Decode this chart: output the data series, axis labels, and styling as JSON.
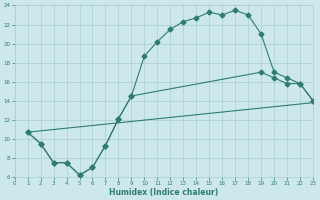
{
  "xlabel": "Humidex (Indice chaleur)",
  "bg_color": "#cde8ec",
  "grid_color": "#aacdd4",
  "line_color": "#2e7d6e",
  "xlim": [
    0,
    23
  ],
  "ylim": [
    6,
    24
  ],
  "xticks": [
    0,
    1,
    2,
    3,
    4,
    5,
    6,
    7,
    8,
    9,
    10,
    11,
    12,
    13,
    14,
    15,
    16,
    17,
    18,
    19,
    20,
    21,
    22,
    23
  ],
  "yticks": [
    6,
    8,
    10,
    12,
    14,
    16,
    18,
    20,
    22,
    24
  ],
  "series1_x": [
    1,
    2,
    3,
    4,
    5,
    6,
    7,
    8,
    9,
    10,
    11,
    12,
    13,
    14,
    15,
    16,
    17,
    18,
    19,
    20,
    21,
    22,
    23
  ],
  "series1_y": [
    10.7,
    9.5,
    7.5,
    7.5,
    6.2,
    7.0,
    9.3,
    12.1,
    14.5,
    18.7,
    20.2,
    21.5,
    22.3,
    22.7,
    23.3,
    23.0,
    23.5,
    23.0,
    21.0,
    17.0,
    16.4,
    15.8,
    14.0
  ],
  "series2_x": [
    1,
    2,
    3,
    4,
    5,
    6,
    7,
    8,
    9,
    19,
    20,
    21,
    22,
    23
  ],
  "series2_y": [
    10.7,
    9.5,
    7.5,
    7.5,
    6.2,
    7.0,
    9.3,
    12.1,
    14.5,
    17.0,
    16.4,
    15.8,
    15.8,
    14.0
  ],
  "series3_x": [
    1,
    23
  ],
  "series3_y": [
    10.7,
    13.8
  ],
  "marker": "D",
  "marker_size": 2.5,
  "lw": 0.8
}
